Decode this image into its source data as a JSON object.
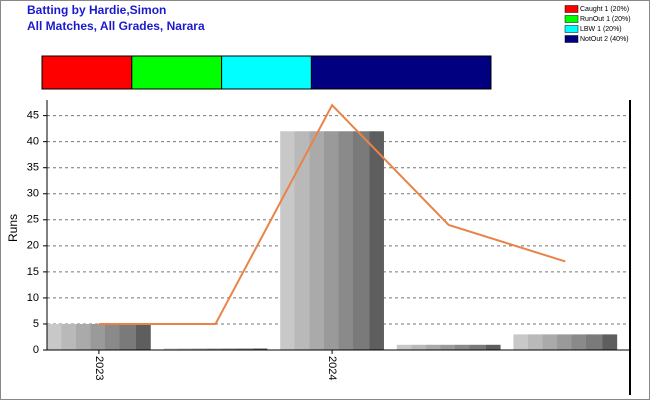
{
  "chart_data": {
    "type": "bar",
    "title": "Batting by Hardie,Simon",
    "subtitle": "All Matches, All Grades, Narara",
    "y_label": "Runs",
    "categories": [
      "2023",
      null,
      "2024",
      null,
      null
    ],
    "series": [
      {
        "type": "bar",
        "color": "#a0a0a0",
        "values": [
          5,
          0,
          42,
          1,
          3
        ]
      },
      {
        "type": "line",
        "color": "#e8844a",
        "values": [
          5,
          5,
          47,
          24,
          17
        ]
      }
    ],
    "ylim": [
      0,
      48
    ],
    "yticks": [
      0,
      5,
      10,
      15,
      20,
      25,
      30,
      35,
      40,
      45
    ],
    "grid": true,
    "composition": [
      {
        "name": "Caught 1 (20%)",
        "value": 20,
        "color": "#ff0000"
      },
      {
        "name": "RunOut 1 (20%)",
        "value": 20,
        "color": "#00ff00"
      },
      {
        "name": "LBW 1 (20%)",
        "value": 20,
        "color": "#00ffff"
      },
      {
        "name": "NotOut 2 (40%)",
        "value": 40,
        "color": "#000080"
      }
    ],
    "legend": "top-right"
  }
}
